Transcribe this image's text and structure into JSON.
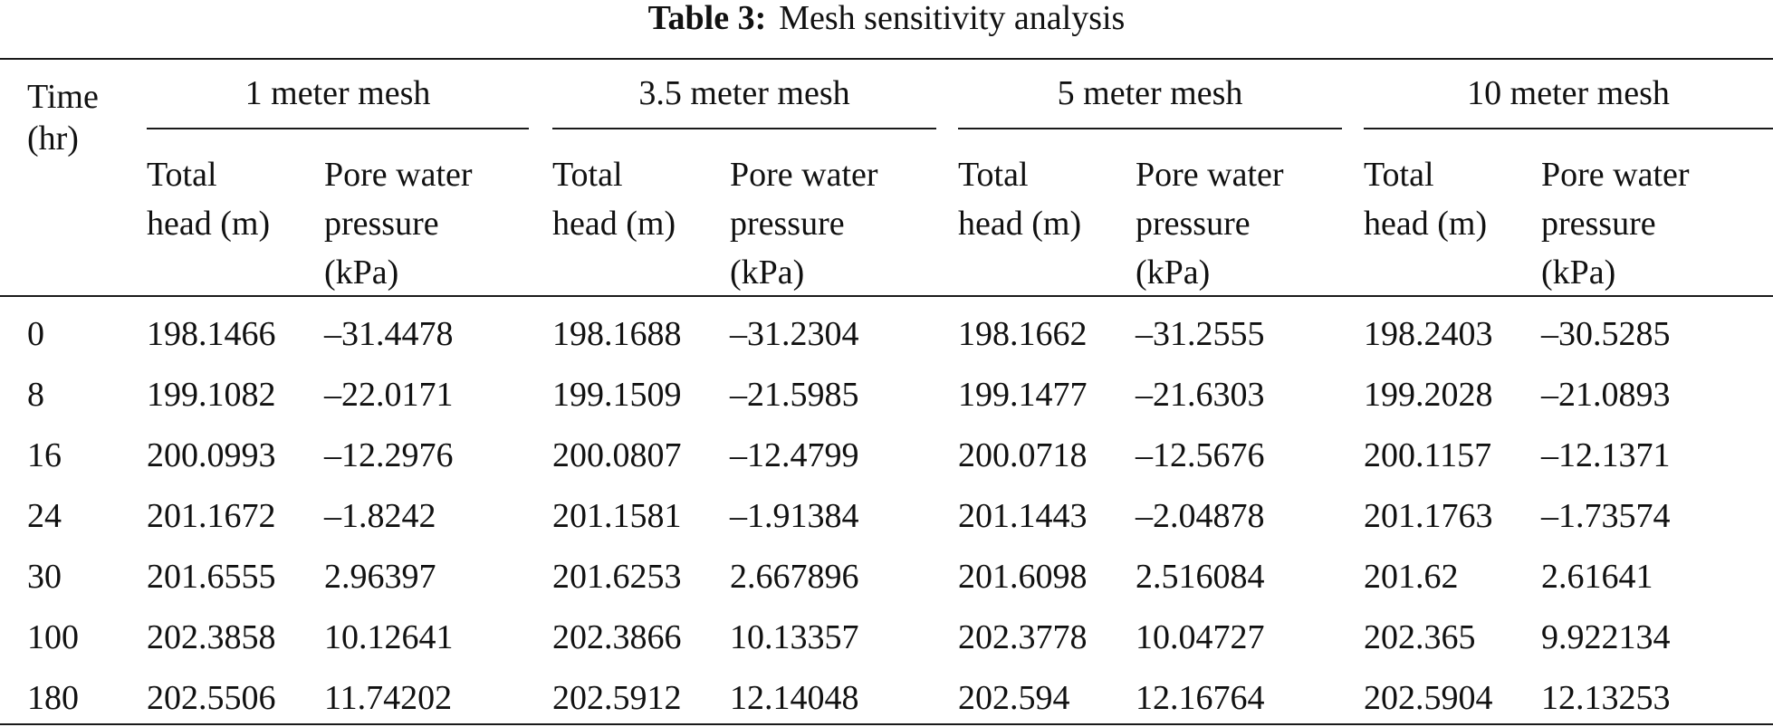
{
  "caption": {
    "label": "Table 3:",
    "text": "Mesh sensitivity analysis"
  },
  "header": {
    "time": "Time\n(hr)",
    "groups": [
      "1 meter mesh",
      "3.5 meter mesh",
      "5 meter mesh",
      "10 meter mesh"
    ],
    "sub_total": "Total\nhead (m)",
    "sub_pore": "Pore water\npressure\n(kPa)"
  },
  "rows": [
    [
      "0",
      "198.1466",
      "–31.4478",
      "198.1688",
      "–31.2304",
      "198.1662",
      "–31.2555",
      "198.2403",
      "–30.5285"
    ],
    [
      "8",
      "199.1082",
      "–22.0171",
      "199.1509",
      "–21.5985",
      "199.1477",
      "–21.6303",
      "199.2028",
      "–21.0893"
    ],
    [
      "16",
      "200.0993",
      "–12.2976",
      "200.0807",
      "–12.4799",
      "200.0718",
      "–12.5676",
      "200.1157",
      "–12.1371"
    ],
    [
      "24",
      "201.1672",
      "–1.8242",
      "201.1581",
      "–1.91384",
      "201.1443",
      "–2.04878",
      "201.1763",
      "–1.73574"
    ],
    [
      "30",
      "201.6555",
      "2.96397",
      "201.6253",
      "2.667896",
      "201.6098",
      "2.516084",
      "201.62",
      "2.61641"
    ],
    [
      "100",
      "202.3858",
      "10.12641",
      "202.3866",
      "10.13357",
      "202.3778",
      "10.04727",
      "202.365",
      "9.922134"
    ],
    [
      "180",
      "202.5506",
      "11.74202",
      "202.5912",
      "12.14048",
      "202.594",
      "12.16764",
      "202.5904",
      "12.13253"
    ]
  ]
}
